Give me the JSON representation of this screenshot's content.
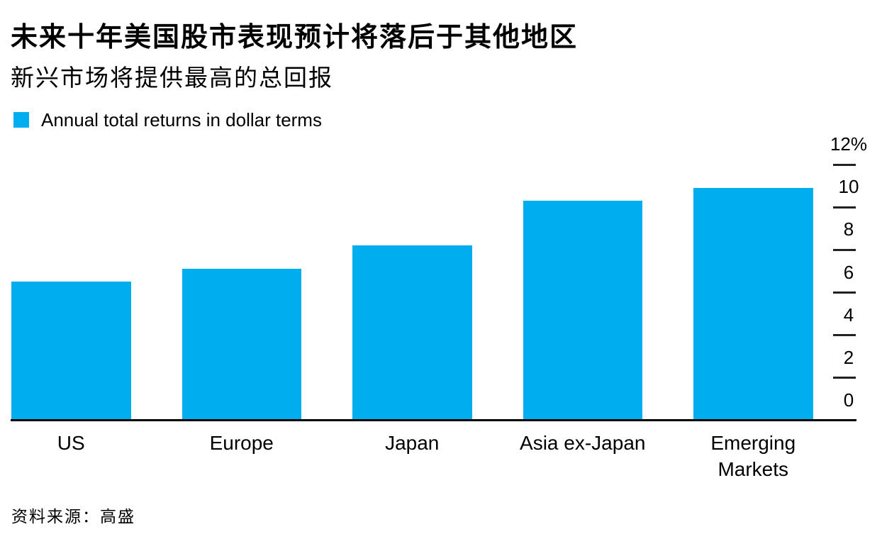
{
  "page": {
    "title": "未来十年美国股市表现预计将落后于其他地区",
    "subtitle": "新兴市场将提供最高的总回报",
    "source": "资料来源：高盛"
  },
  "legend": {
    "label": "Annual total returns in dollar terms",
    "swatch_color": "#00AEEF"
  },
  "colors": {
    "bar": "#00AEEF",
    "text": "#000000",
    "axis_line": "#000000",
    "tick": "#222222"
  },
  "chart_data": {
    "type": "bar",
    "title": "未来十年美国股市表现预计将落后于其他地区",
    "subtitle": "新兴市场将提供最高的总回报",
    "categories": [
      "US",
      "Europe",
      "Japan",
      "Asia ex-Japan",
      "Emerging Markets"
    ],
    "series": [
      {
        "name": "Annual total returns in dollar terms",
        "values": [
          6.5,
          7.1,
          8.2,
          10.3,
          10.9
        ]
      }
    ],
    "unit": "%",
    "ylim": [
      0,
      12
    ],
    "yticks": [
      0,
      2,
      4,
      6,
      8,
      10,
      12
    ],
    "ytick_labels": [
      "0",
      "2",
      "4",
      "6",
      "8",
      "10",
      "12%"
    ],
    "axis_position": "right",
    "grid": false,
    "legend_position": "top-left",
    "source": "资料来源：高盛"
  }
}
